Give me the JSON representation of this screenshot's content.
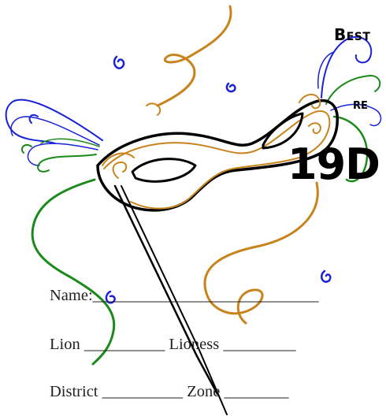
{
  "heading": {
    "line1": "Best",
    "line2": "re",
    "line3": "19D"
  },
  "form": {
    "name_label": "Name:",
    "name_blank": "____________________________",
    "lion_label": "Lion",
    "lion_blank": "__________",
    "lioness_label": "Lioness",
    "lioness_blank": "_________",
    "district_label": "District",
    "district_blank": "__________",
    "zone_label": "Zone",
    "zone_blank": "________"
  },
  "colors": {
    "gold": "#c8841c",
    "blue": "#1a22d8",
    "green": "#1a8a1a",
    "ink": "#000000"
  },
  "illustration": "masquerade-mask-with-streamers"
}
